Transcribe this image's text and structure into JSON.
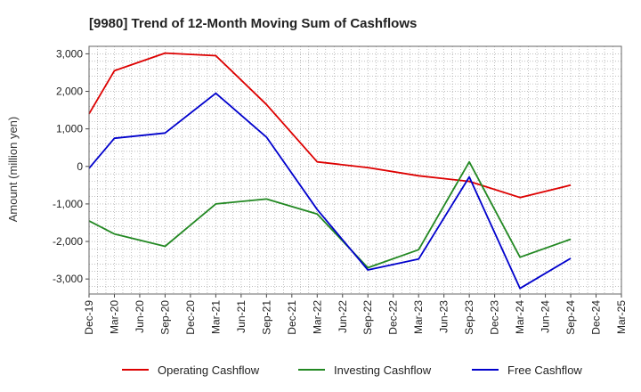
{
  "chart_data": {
    "type": "line",
    "title": "[9980]  Trend of 12-Month Moving Sum of Cashflows",
    "xlabel": "",
    "ylabel": "Amount (million yen)",
    "ylim": [
      -3400,
      3200
    ],
    "yticks": [
      3000,
      2000,
      1000,
      0,
      -1000,
      -2000,
      -3000
    ],
    "ytick_labels": [
      "3,000",
      "2,000",
      "1,000",
      "0",
      "-1,000",
      "-2,000",
      "-3,000"
    ],
    "categories": [
      "Dec-19",
      "Mar-20",
      "Jun-20",
      "Sep-20",
      "Dec-20",
      "Mar-21",
      "Jun-21",
      "Sep-21",
      "Dec-21",
      "Mar-22",
      "Jun-22",
      "Sep-22",
      "Dec-22",
      "Mar-23",
      "Jun-23",
      "Sep-23",
      "Dec-23",
      "Mar-24",
      "Jun-24",
      "Sep-24",
      "Dec-24",
      "Mar-25"
    ],
    "grid": true,
    "legend_position": "bottom",
    "series": [
      {
        "name": "Operating Cashflow",
        "color": "#dd0000",
        "values": [
          1400,
          2550,
          null,
          3020,
          null,
          2950,
          null,
          1650,
          null,
          120,
          null,
          -30,
          null,
          -250,
          null,
          -400,
          null,
          -830,
          null,
          -500,
          null,
          null
        ]
      },
      {
        "name": "Investing Cashflow",
        "color": "#228822",
        "values": [
          -1450,
          -1800,
          null,
          -2130,
          null,
          -1000,
          null,
          -870,
          null,
          -1270,
          null,
          -2700,
          null,
          -2220,
          null,
          120,
          null,
          -2420,
          null,
          -1940,
          null,
          null
        ]
      },
      {
        "name": "Free Cashflow",
        "color": "#0000cc",
        "values": [
          -50,
          750,
          null,
          890,
          null,
          1950,
          null,
          780,
          null,
          -1150,
          null,
          -2760,
          null,
          -2470,
          null,
          -280,
          null,
          -3250,
          null,
          -2450,
          null,
          null
        ]
      }
    ]
  }
}
